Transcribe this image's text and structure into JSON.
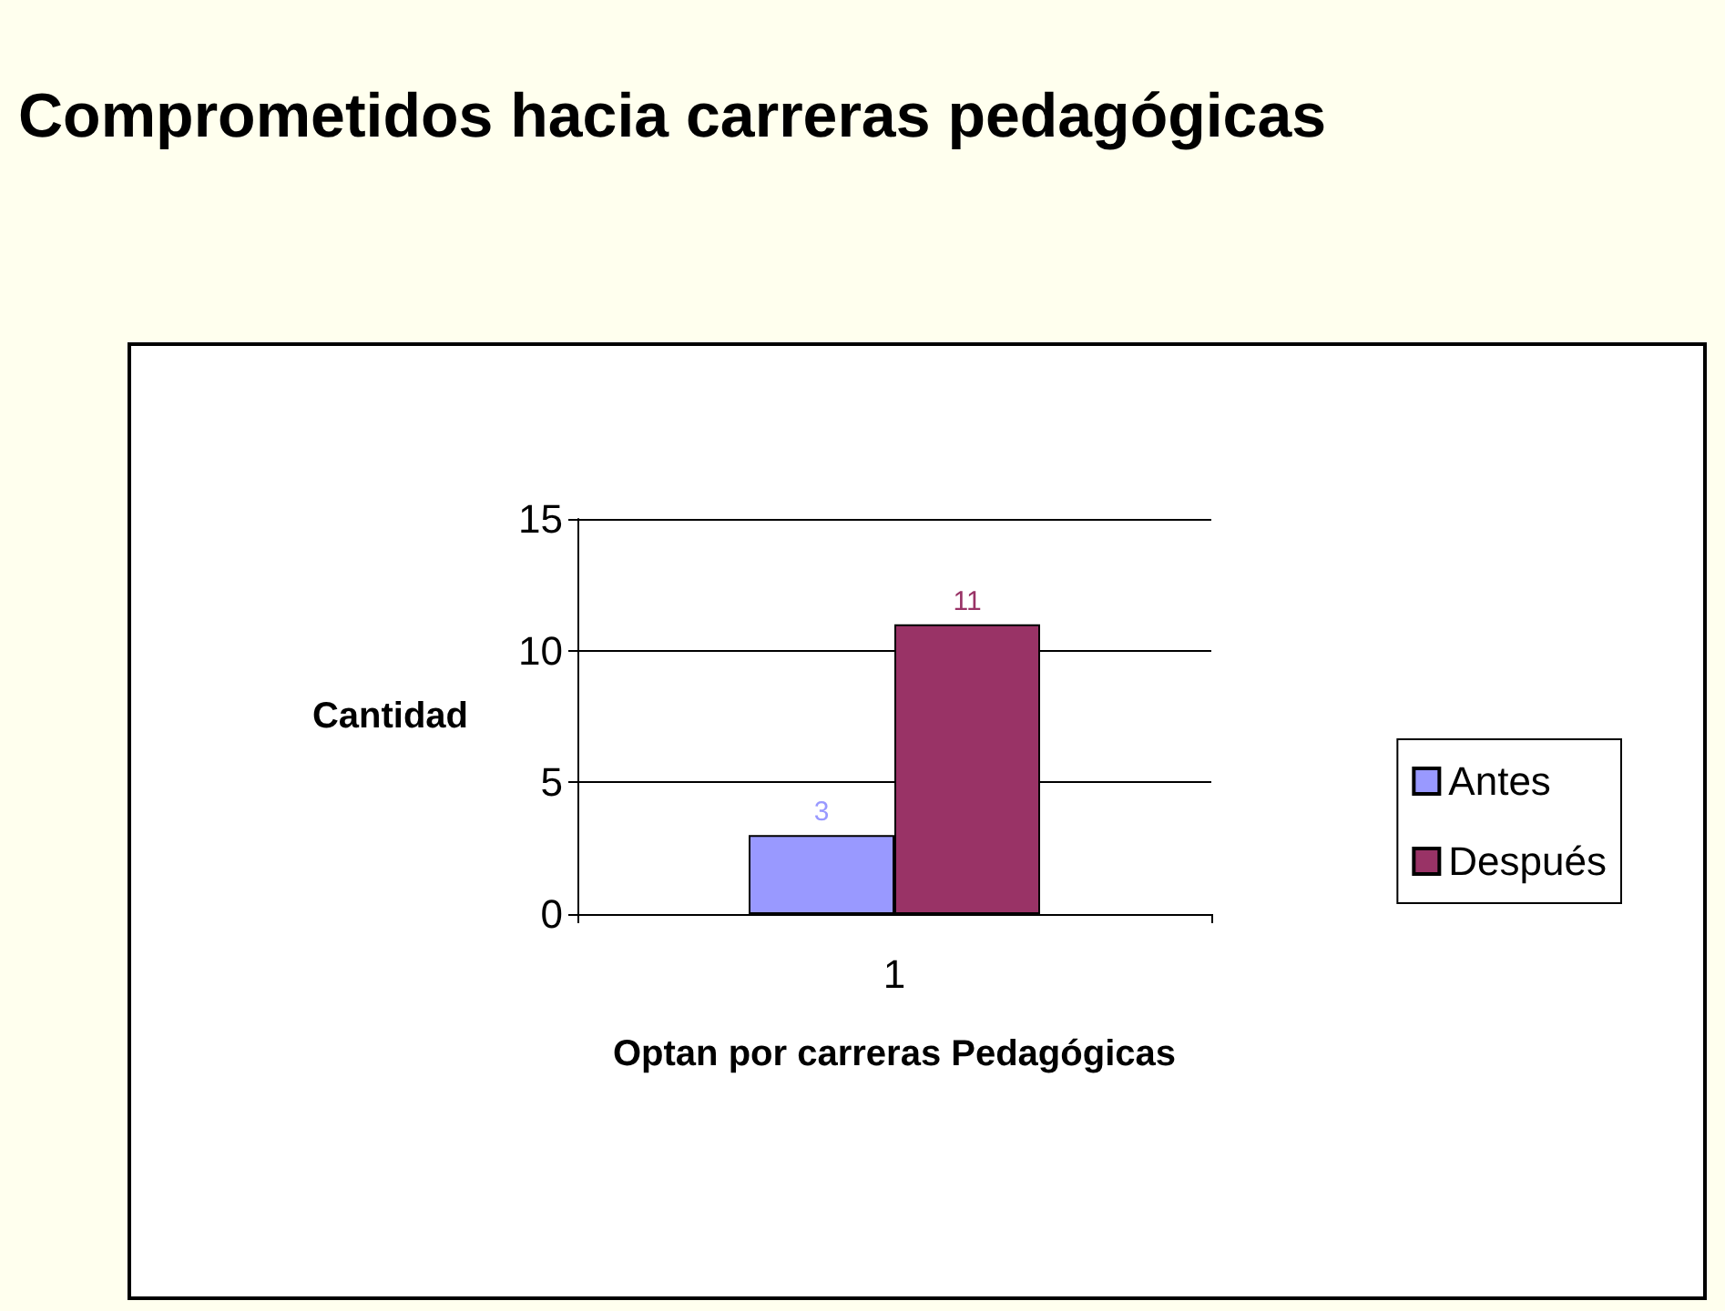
{
  "chart_data": {
    "type": "bar",
    "title": "Comprometidos hacia carreras pedagógicas",
    "xlabel": "Optan por carreras Pedagógicas",
    "ylabel": "Cantidad",
    "categories": [
      "1"
    ],
    "series": [
      {
        "name": "Antes",
        "color": "#9999ff",
        "values": [
          3
        ]
      },
      {
        "name": "Después",
        "color": "#993366",
        "values": [
          11
        ]
      }
    ],
    "ylim": [
      0,
      15
    ],
    "yticks": [
      0,
      5,
      10,
      15
    ],
    "grid": "y",
    "legend": "right",
    "data_labels": true
  }
}
